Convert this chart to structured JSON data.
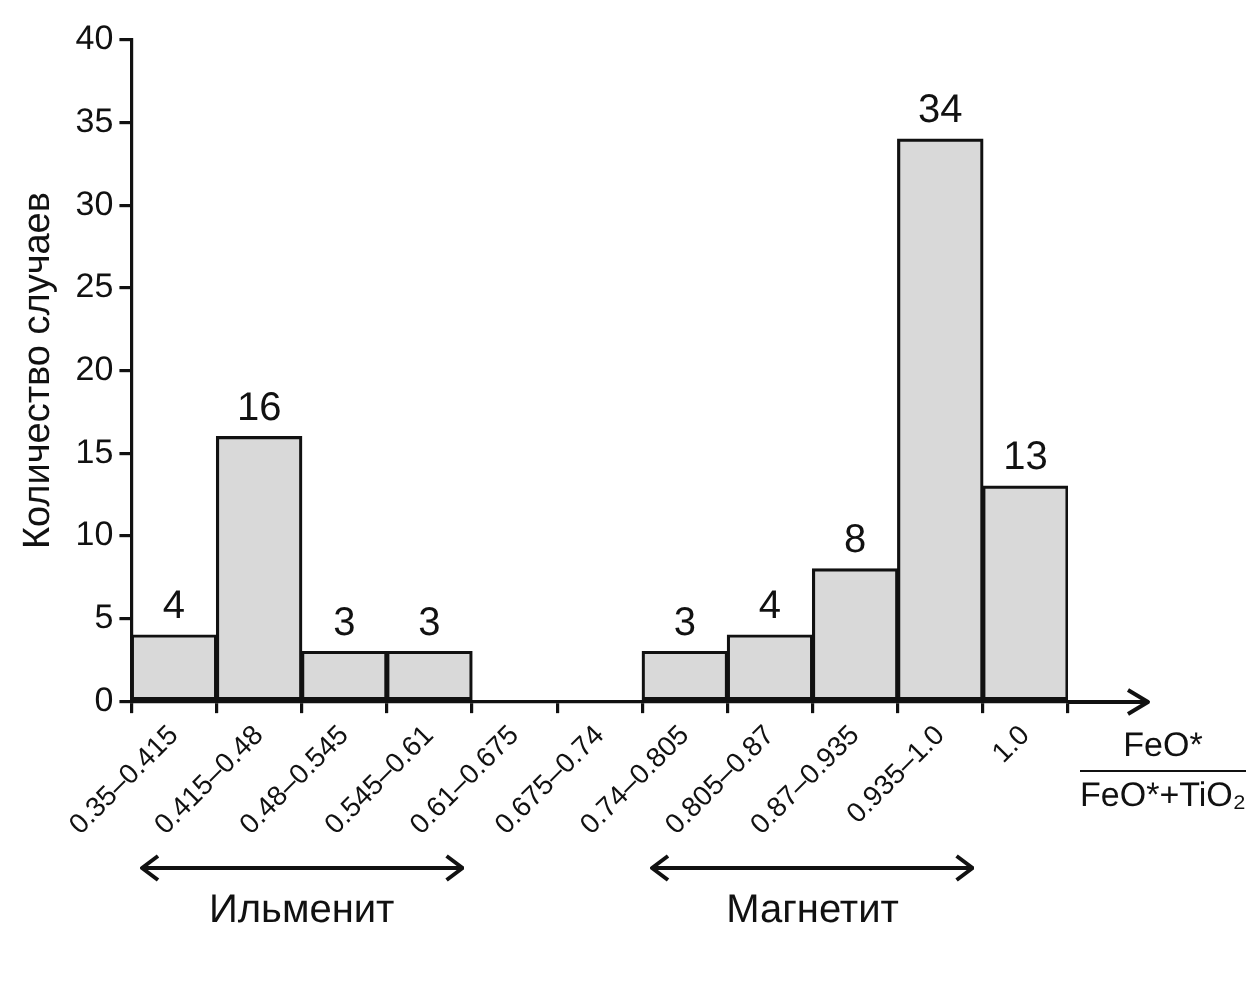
{
  "chart_data": {
    "type": "bar",
    "xlabel": "FeO*\nFeO*+TiO₂",
    "ylabel": "Количество случаев",
    "categories": [
      "0.35–0.415",
      "0.415–0.48",
      "0.48–0.545",
      "0.545–0.61",
      "0.61–0.675",
      "0.675–0.74",
      "0.74–0.805",
      "0.805–0.87",
      "0.87–0.935",
      "0.935–1.0",
      "1.0"
    ],
    "values": [
      4,
      16,
      3,
      3,
      null,
      null,
      3,
      4,
      8,
      34,
      13
    ],
    "color": "#d9d9d9",
    "ylim": [
      0,
      40
    ],
    "yticks": [
      0,
      5,
      10,
      15,
      20,
      25,
      30,
      35,
      40
    ],
    "grid": false,
    "legend": false,
    "data_labels": true,
    "annotations": [
      "Ильменит",
      "Магнетит"
    ]
  }
}
